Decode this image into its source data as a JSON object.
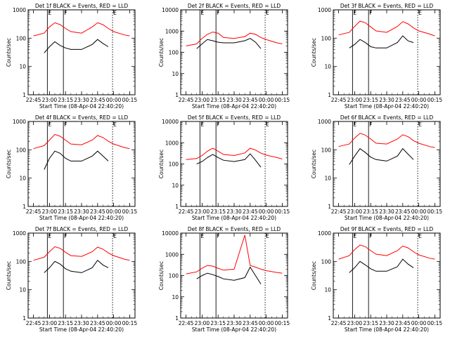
{
  "shared": {
    "x_tick_labels": [
      "22:45",
      "23:00",
      "23:15",
      "23:30",
      "23:45",
      "00:00",
      "00:15"
    ],
    "y_tick_labels_4": [
      "1",
      "10",
      "100",
      "1000"
    ],
    "y_tick_labels_5": [
      "1",
      "10",
      "100",
      "1000",
      "10000"
    ],
    "ylabel": "Counts/sec",
    "xlabel": "Start Time (08-Apr-04 22:40:20)",
    "marker_labels": [
      "E",
      "F",
      "E"
    ],
    "colors": {
      "events": "#000000",
      "lld": "#ff0000",
      "axes": "#000000",
      "background": "#ffffff"
    }
  },
  "chart_data": [
    {
      "type": "line",
      "title": "Det 1f BLACK = Events, RED = LLD",
      "ylim": [
        1,
        1000
      ],
      "yscale": "log",
      "series": [
        {
          "color": "#000000",
          "x": [
            "22:55",
            "23:00",
            "23:05",
            "23:10",
            "23:15",
            "23:20",
            "23:30",
            "23:40",
            "23:45",
            "23:50",
            "23:55"
          ],
          "values": [
            30,
            50,
            75,
            55,
            45,
            40,
            40,
            60,
            90,
            65,
            50
          ]
        },
        {
          "color": "#ff0000",
          "x": [
            "22:45",
            "22:55",
            "23:00",
            "23:05",
            "23:10",
            "23:15",
            "23:20",
            "23:30",
            "23:40",
            "23:45",
            "23:50",
            "23:55",
            "00:00",
            "00:10",
            "00:15"
          ],
          "values": [
            120,
            150,
            250,
            350,
            300,
            220,
            170,
            150,
            250,
            350,
            300,
            220,
            170,
            130,
            120
          ]
        }
      ]
    },
    {
      "type": "line",
      "title": "Det 2f BLACK = Events, RED = LLD",
      "ylim": [
        1,
        10000
      ],
      "yscale": "log",
      "series": [
        {
          "color": "#000000",
          "x": [
            "22:55",
            "23:00",
            "23:05",
            "23:10",
            "23:15",
            "23:20",
            "23:30",
            "23:40",
            "23:45",
            "23:50",
            "23:55"
          ],
          "values": [
            150,
            250,
            400,
            350,
            300,
            280,
            280,
            350,
            450,
            300,
            150
          ]
        },
        {
          "color": "#ff0000",
          "x": [
            "22:45",
            "22:55",
            "23:00",
            "23:05",
            "23:10",
            "23:15",
            "23:20",
            "23:30",
            "23:40",
            "23:45",
            "23:50",
            "23:55",
            "00:00",
            "00:10",
            "00:15"
          ],
          "values": [
            200,
            250,
            450,
            700,
            900,
            800,
            500,
            450,
            550,
            800,
            700,
            500,
            400,
            280,
            250
          ]
        }
      ]
    },
    {
      "type": "line",
      "title": "Det 3f BLACK = Events, RED = LLD",
      "ylim": [
        1,
        1000
      ],
      "yscale": "log",
      "series": [
        {
          "color": "#000000",
          "x": [
            "22:55",
            "23:00",
            "23:05",
            "23:10",
            "23:15",
            "23:20",
            "23:30",
            "23:40",
            "23:45",
            "23:50",
            "23:55"
          ],
          "values": [
            45,
            60,
            90,
            70,
            50,
            45,
            45,
            70,
            120,
            80,
            70
          ]
        },
        {
          "color": "#ff0000",
          "x": [
            "22:45",
            "22:55",
            "23:00",
            "23:05",
            "23:10",
            "23:15",
            "23:20",
            "23:30",
            "23:40",
            "23:45",
            "23:50",
            "23:55",
            "00:00",
            "00:10",
            "00:15"
          ],
          "values": [
            130,
            160,
            260,
            400,
            350,
            250,
            180,
            160,
            260,
            380,
            320,
            230,
            180,
            140,
            120
          ]
        }
      ]
    },
    {
      "type": "line",
      "title": "Det 4f BLACK = Events, RED = LLD",
      "ylim": [
        1,
        1000
      ],
      "yscale": "log",
      "series": [
        {
          "color": "#000000",
          "x": [
            "22:55",
            "23:00",
            "23:05",
            "23:10",
            "23:15",
            "23:20",
            "23:30",
            "23:40",
            "23:45",
            "23:50",
            "23:55"
          ],
          "values": [
            20,
            50,
            90,
            75,
            50,
            40,
            40,
            60,
            90,
            60,
            40
          ]
        },
        {
          "color": "#ff0000",
          "x": [
            "22:45",
            "22:55",
            "23:00",
            "23:05",
            "23:10",
            "23:15",
            "23:20",
            "23:30",
            "23:40",
            "23:45",
            "23:50",
            "23:55",
            "00:00",
            "00:10",
            "00:15"
          ],
          "values": [
            110,
            140,
            220,
            350,
            300,
            220,
            160,
            150,
            220,
            320,
            270,
            200,
            160,
            120,
            110
          ]
        }
      ]
    },
    {
      "type": "line",
      "title": "Det 5f BLACK = Events, RED = LLD",
      "ylim": [
        1,
        10000
      ],
      "yscale": "log",
      "series": [
        {
          "color": "#000000",
          "x": [
            "22:55",
            "23:00",
            "23:05",
            "23:10",
            "23:15",
            "23:20",
            "23:30",
            "23:40",
            "23:45",
            "23:50",
            "23:55"
          ],
          "values": [
            100,
            130,
            200,
            280,
            200,
            150,
            130,
            160,
            300,
            150,
            70
          ]
        },
        {
          "color": "#ff0000",
          "x": [
            "22:45",
            "22:55",
            "23:00",
            "23:05",
            "23:10",
            "23:15",
            "23:20",
            "23:30",
            "23:40",
            "23:45",
            "23:50",
            "23:55",
            "00:00",
            "00:10",
            "00:15"
          ],
          "values": [
            160,
            180,
            250,
            400,
            550,
            400,
            280,
            250,
            330,
            550,
            450,
            320,
            260,
            200,
            170
          ]
        }
      ]
    },
    {
      "type": "line",
      "title": "Det 6f BLACK = Events, RED = LLD",
      "ylim": [
        1,
        1000
      ],
      "yscale": "log",
      "series": [
        {
          "color": "#000000",
          "x": [
            "22:55",
            "23:00",
            "23:05",
            "23:10",
            "23:15",
            "23:20",
            "23:30",
            "23:40",
            "23:45",
            "23:50",
            "23:55"
          ],
          "values": [
            30,
            60,
            110,
            80,
            55,
            45,
            40,
            60,
            110,
            70,
            45
          ]
        },
        {
          "color": "#ff0000",
          "x": [
            "22:45",
            "22:55",
            "23:00",
            "23:05",
            "23:10",
            "23:15",
            "23:20",
            "23:30",
            "23:40",
            "23:45",
            "23:50",
            "23:55",
            "00:00",
            "00:10",
            "00:15"
          ],
          "values": [
            130,
            160,
            260,
            380,
            330,
            240,
            170,
            160,
            240,
            340,
            290,
            210,
            170,
            130,
            120
          ]
        }
      ]
    },
    {
      "type": "line",
      "title": "Det 7f BLACK = Events, RED = LLD",
      "ylim": [
        1,
        1000
      ],
      "yscale": "log",
      "series": [
        {
          "color": "#000000",
          "x": [
            "22:55",
            "23:00",
            "23:05",
            "23:10",
            "23:15",
            "23:20",
            "23:30",
            "23:40",
            "23:45",
            "23:50",
            "23:55"
          ],
          "values": [
            40,
            60,
            100,
            80,
            55,
            45,
            40,
            60,
            110,
            75,
            60
          ]
        },
        {
          "color": "#ff0000",
          "x": [
            "22:45",
            "22:55",
            "23:00",
            "23:05",
            "23:10",
            "23:15",
            "23:20",
            "23:30",
            "23:40",
            "23:45",
            "23:50",
            "23:55",
            "00:00",
            "00:10",
            "00:15"
          ],
          "values": [
            110,
            140,
            220,
            330,
            290,
            210,
            160,
            150,
            220,
            320,
            270,
            200,
            160,
            120,
            110
          ]
        }
      ]
    },
    {
      "type": "line",
      "title": "Det 8f BLACK = Events, RED = LLD",
      "ylim": [
        1,
        10000
      ],
      "yscale": "log",
      "series": [
        {
          "color": "#000000",
          "x": [
            "22:55",
            "23:00",
            "23:05",
            "23:10",
            "23:15",
            "23:20",
            "23:30",
            "23:40",
            "23:45",
            "23:50",
            "23:55"
          ],
          "values": [
            70,
            100,
            130,
            110,
            90,
            70,
            60,
            80,
            250,
            100,
            40
          ]
        },
        {
          "color": "#ff0000",
          "x": [
            "22:45",
            "22:55",
            "23:00",
            "23:05",
            "23:10",
            "23:15",
            "23:20",
            "23:30",
            "23:40",
            "23:45",
            "23:50",
            "23:55",
            "00:00",
            "00:10",
            "00:15"
          ],
          "values": [
            120,
            150,
            220,
            300,
            280,
            220,
            180,
            200,
            8000,
            300,
            250,
            200,
            170,
            140,
            130
          ]
        }
      ]
    },
    {
      "type": "line",
      "title": "Det 9f BLACK = Events, RED = LLD",
      "ylim": [
        1,
        1000
      ],
      "yscale": "log",
      "series": [
        {
          "color": "#000000",
          "x": [
            "22:55",
            "23:00",
            "23:05",
            "23:10",
            "23:15",
            "23:20",
            "23:30",
            "23:40",
            "23:45",
            "23:50",
            "23:55"
          ],
          "values": [
            40,
            60,
            100,
            75,
            55,
            45,
            45,
            65,
            120,
            80,
            60
          ]
        },
        {
          "color": "#ff0000",
          "x": [
            "22:45",
            "22:55",
            "23:00",
            "23:05",
            "23:10",
            "23:15",
            "23:20",
            "23:30",
            "23:40",
            "23:45",
            "23:50",
            "23:55",
            "00:00",
            "00:10",
            "00:15"
          ],
          "values": [
            120,
            160,
            260,
            380,
            330,
            240,
            180,
            160,
            240,
            350,
            300,
            220,
            170,
            130,
            120
          ]
        }
      ]
    }
  ]
}
